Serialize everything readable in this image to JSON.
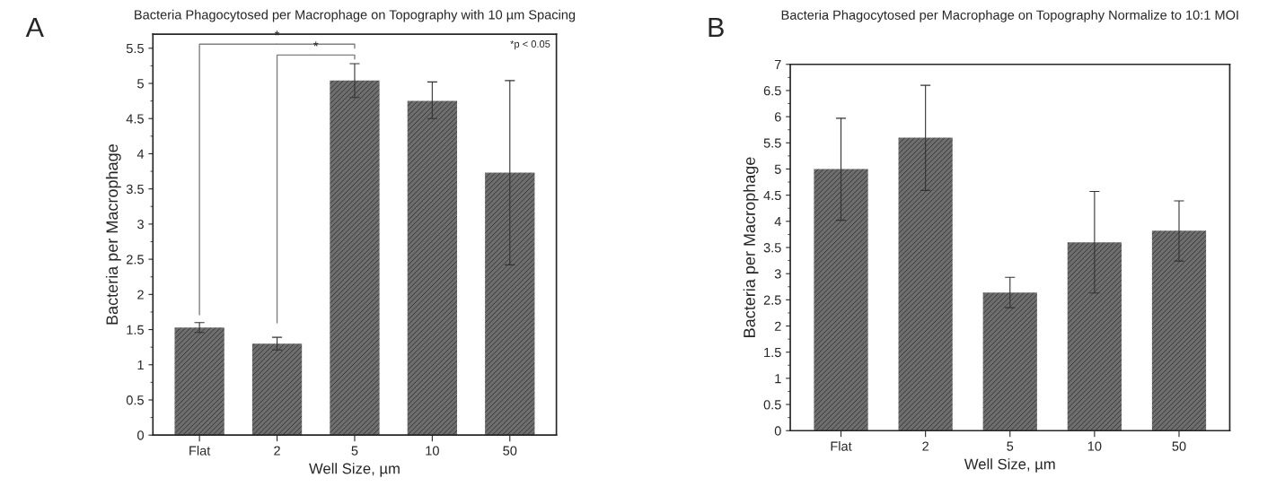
{
  "chart_data": [
    {
      "type": "bar",
      "title": "Bacteria Phagocytosed per Macrophage on Topography with 10 µm Spacing",
      "xlabel": "Well Size, µm",
      "ylabel": "Bacteria per Macrophage",
      "categories": [
        "Flat",
        "2",
        "5",
        "10",
        "50"
      ],
      "values": [
        1.53,
        1.3,
        5.04,
        4.75,
        3.73
      ],
      "color": "#6e6e6e",
      "errors": [
        [
          1.46,
          1.6
        ],
        [
          1.21,
          1.39
        ],
        [
          4.8,
          5.28
        ],
        [
          4.5,
          5.02
        ],
        [
          2.42,
          5.04
        ]
      ],
      "ylim": [
        0,
        5.7
      ],
      "yticks": [
        0,
        0.5,
        1,
        1.5,
        2,
        2.5,
        3,
        3.5,
        4,
        4.5,
        5,
        5.5
      ],
      "grid": false,
      "annotations": [
        "A",
        "*",
        "*",
        "*p < 0.05"
      ]
    },
    {
      "type": "bar",
      "title": "Bacteria Phagocytosed per Macrophage on Topography Normalize to 10:1 MOI",
      "xlabel": "Well Size, µm",
      "ylabel": "Bacteria per Macrophage",
      "categories": [
        "Flat",
        "2",
        "5",
        "10",
        "50"
      ],
      "values": [
        5.0,
        5.6,
        2.64,
        3.6,
        3.82
      ],
      "color": "#6e6e6e",
      "errors": [
        [
          4.02,
          5.97
        ],
        [
          4.59,
          6.6
        ],
        [
          2.35,
          2.93
        ],
        [
          2.63,
          4.57
        ],
        [
          3.24,
          4.39
        ]
      ],
      "ylim": [
        0,
        7
      ],
      "yticks": [
        0,
        0.5,
        1,
        1.5,
        2,
        2.5,
        3,
        3.5,
        4,
        4.5,
        5,
        5.5,
        6,
        6.5,
        7
      ],
      "grid": false,
      "annotations": [
        "B"
      ]
    }
  ]
}
